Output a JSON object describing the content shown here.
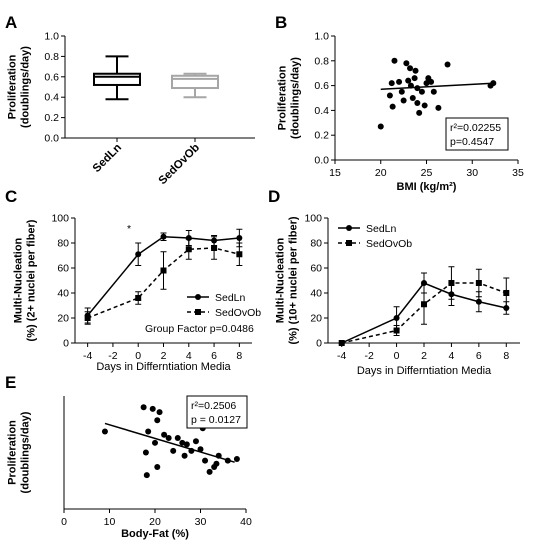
{
  "panels": {
    "A": "A",
    "B": "B",
    "C": "C",
    "D": "D",
    "E": "E"
  },
  "chart_data": [
    {
      "panel": "A",
      "type": "box",
      "ylabel": "Proliferation (doublings/day)",
      "ylim": [
        0,
        1.0
      ],
      "yticks": [
        "0.0",
        "0.2",
        "0.4",
        "0.6",
        "0.8",
        "1.0"
      ],
      "categories": [
        "SedLn",
        "SedOvOb"
      ],
      "boxes": [
        {
          "category": "SedLn",
          "min": 0.38,
          "q1": 0.52,
          "median": 0.6,
          "q3": 0.63,
          "max": 0.8,
          "color": "#000000"
        },
        {
          "category": "SedOvOb",
          "min": 0.4,
          "q1": 0.49,
          "median": 0.58,
          "q3": 0.61,
          "max": 0.63,
          "color": "#a6a6a6"
        }
      ]
    },
    {
      "panel": "B",
      "type": "scatter",
      "xlabel": "BMI (kg/m²)",
      "ylabel": "Proliferation (doublings/day)",
      "xlim": [
        15,
        35
      ],
      "ylim": [
        0,
        1.0
      ],
      "xticks": [
        "15",
        "20",
        "25",
        "30",
        "35"
      ],
      "yticks": [
        "0.0",
        "0.2",
        "0.4",
        "0.6",
        "0.8",
        "1.0"
      ],
      "points": [
        [
          20.0,
          0.27
        ],
        [
          21.0,
          0.52
        ],
        [
          21.2,
          0.62
        ],
        [
          21.5,
          0.8
        ],
        [
          21.3,
          0.43
        ],
        [
          22.0,
          0.63
        ],
        [
          22.3,
          0.55
        ],
        [
          22.5,
          0.48
        ],
        [
          22.8,
          0.78
        ],
        [
          23.0,
          0.64
        ],
        [
          23.2,
          0.74
        ],
        [
          23.3,
          0.6
        ],
        [
          23.5,
          0.5
        ],
        [
          23.7,
          0.66
        ],
        [
          23.8,
          0.72
        ],
        [
          24.0,
          0.46
        ],
        [
          24.0,
          0.58
        ],
        [
          24.2,
          0.38
        ],
        [
          24.5,
          0.55
        ],
        [
          24.8,
          0.44
        ],
        [
          25.0,
          0.62
        ],
        [
          25.2,
          0.66
        ],
        [
          25.5,
          0.63
        ],
        [
          25.8,
          0.55
        ],
        [
          26.3,
          0.42
        ],
        [
          27.3,
          0.77
        ],
        [
          32.0,
          0.6
        ],
        [
          32.3,
          0.62
        ]
      ],
      "fit_line": [
        [
          20.0,
          0.57
        ],
        [
          32.5,
          0.62
        ]
      ],
      "stats": [
        "r²=0.02255",
        "p=0.4547"
      ]
    },
    {
      "panel": "C",
      "type": "line",
      "xlabel": "Days in Differntiation Media",
      "ylabel": "Multi-Nucleation (%) (2+ nuclei per fiber)",
      "xlim": [
        -5,
        9
      ],
      "ylim": [
        0,
        100
      ],
      "xticks": [
        "-4",
        "-2",
        "0",
        "2",
        "4",
        "6",
        "8"
      ],
      "yticks": [
        "0",
        "20",
        "40",
        "60",
        "80",
        "100"
      ],
      "x": [
        -4,
        0,
        2,
        4,
        6,
        8
      ],
      "series": [
        {
          "name": "SedLn",
          "style": "solid",
          "marker": "circle",
          "values": [
            22,
            71,
            85,
            84,
            82,
            84
          ],
          "errors": [
            6,
            9,
            3,
            6,
            4,
            7
          ]
        },
        {
          "name": "SedOvOb",
          "style": "dashed",
          "marker": "square",
          "values": [
            20,
            36,
            58,
            75,
            76,
            71
          ],
          "errors": [
            5,
            5,
            15,
            8,
            9,
            9
          ]
        }
      ],
      "annotation": "*",
      "annotation_x": 0,
      "note": "Group Factor p=0.0486"
    },
    {
      "panel": "D",
      "type": "line",
      "xlabel": "Days in Differntiation Media",
      "ylabel": "Multi-Nucleation (%) (10+ nuclei per fiber)",
      "xlim": [
        -5,
        9
      ],
      "ylim": [
        0,
        100
      ],
      "xticks": [
        "-4",
        "-2",
        "0",
        "2",
        "4",
        "6",
        "8"
      ],
      "yticks": [
        "0",
        "20",
        "40",
        "60",
        "80",
        "100"
      ],
      "x": [
        -4,
        0,
        2,
        4,
        6,
        8
      ],
      "series": [
        {
          "name": "SedLn",
          "style": "solid",
          "marker": "circle",
          "values": [
            0,
            20,
            48,
            39,
            33,
            28
          ],
          "errors": [
            0,
            9,
            8,
            9,
            8,
            5
          ]
        },
        {
          "name": "SedOvOb",
          "style": "dashed",
          "marker": "square",
          "values": [
            0,
            10,
            31,
            48,
            48,
            40
          ],
          "errors": [
            0,
            4,
            16,
            13,
            11,
            12
          ]
        }
      ]
    },
    {
      "panel": "E",
      "type": "scatter",
      "xlabel": "Body-Fat (%)",
      "ylabel": "Proliferation (doublings/day)",
      "xlim": [
        0,
        40
      ],
      "ylim": [
        0.0,
        0.7
      ],
      "xticks": [
        "0",
        "10",
        "20",
        "30",
        "40"
      ],
      "points": [
        [
          9.0,
          0.48
        ],
        [
          17.5,
          0.63
        ],
        [
          18.0,
          0.35
        ],
        [
          18.2,
          0.21
        ],
        [
          18.5,
          0.48
        ],
        [
          19.5,
          0.62
        ],
        [
          20.0,
          0.41
        ],
        [
          20.5,
          0.55
        ],
        [
          20.5,
          0.26
        ],
        [
          21.0,
          0.6
        ],
        [
          22.0,
          0.46
        ],
        [
          23.0,
          0.44
        ],
        [
          24.0,
          0.36
        ],
        [
          25.0,
          0.44
        ],
        [
          26.0,
          0.41
        ],
        [
          26.5,
          0.33
        ],
        [
          27.0,
          0.4
        ],
        [
          28.0,
          0.36
        ],
        [
          29.0,
          0.42
        ],
        [
          30.0,
          0.37
        ],
        [
          30.5,
          0.5
        ],
        [
          31.0,
          0.3
        ],
        [
          32.0,
          0.23
        ],
        [
          33.0,
          0.26
        ],
        [
          33.5,
          0.28
        ],
        [
          34.0,
          0.33
        ],
        [
          36.0,
          0.3
        ],
        [
          38.0,
          0.31
        ]
      ],
      "fit_line": [
        [
          9.0,
          0.53
        ],
        [
          37.5,
          0.29
        ]
      ],
      "stats": [
        "r²=0.2506",
        "p = 0.0127"
      ]
    }
  ]
}
